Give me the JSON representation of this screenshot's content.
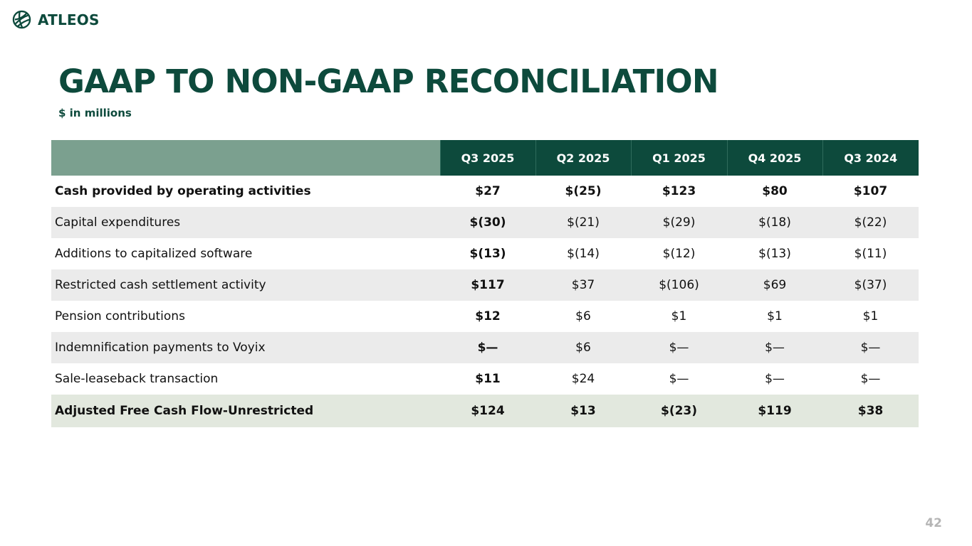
{
  "brand": {
    "name": "ATLEOS",
    "color": "#0d4a3c"
  },
  "title": "GAAP TO NON-GAAP RECONCILIATION",
  "subtitle": "$ in millions",
  "table": {
    "columns": [
      "Q3 2025",
      "Q2 2025",
      "Q1 2025",
      "Q4 2025",
      "Q3 2024"
    ],
    "rows": [
      {
        "label": "Cash provided by operating activities",
        "values": [
          "$27",
          "$(25)",
          "$123",
          "$80",
          "$107"
        ]
      },
      {
        "label": "Capital expenditures",
        "values": [
          "$(30)",
          "$(21)",
          "$(29)",
          "$(18)",
          "$(22)"
        ]
      },
      {
        "label": "Additions to capitalized software",
        "values": [
          "$(13)",
          "$(14)",
          "$(12)",
          "$(13)",
          "$(11)"
        ]
      },
      {
        "label": "Restricted cash settlement activity",
        "values": [
          "$117",
          "$37",
          "$(106)",
          "$69",
          "$(37)"
        ]
      },
      {
        "label": "Pension contributions",
        "values": [
          "$12",
          "$6",
          "$1",
          "$1",
          "$1"
        ]
      },
      {
        "label": "Indemnification payments to Voyix",
        "values": [
          "$—",
          "$6",
          "$—",
          "$—",
          "$—"
        ]
      },
      {
        "label": "Sale-leaseback transaction",
        "values": [
          "$11",
          "$24",
          "$—",
          "$—",
          "$—"
        ]
      }
    ],
    "total": {
      "label": "Adjusted Free Cash Flow-Unrestricted",
      "values": [
        "$124",
        "$13",
        "$(23)",
        "$119",
        "$38"
      ]
    }
  },
  "page_number": "42"
}
